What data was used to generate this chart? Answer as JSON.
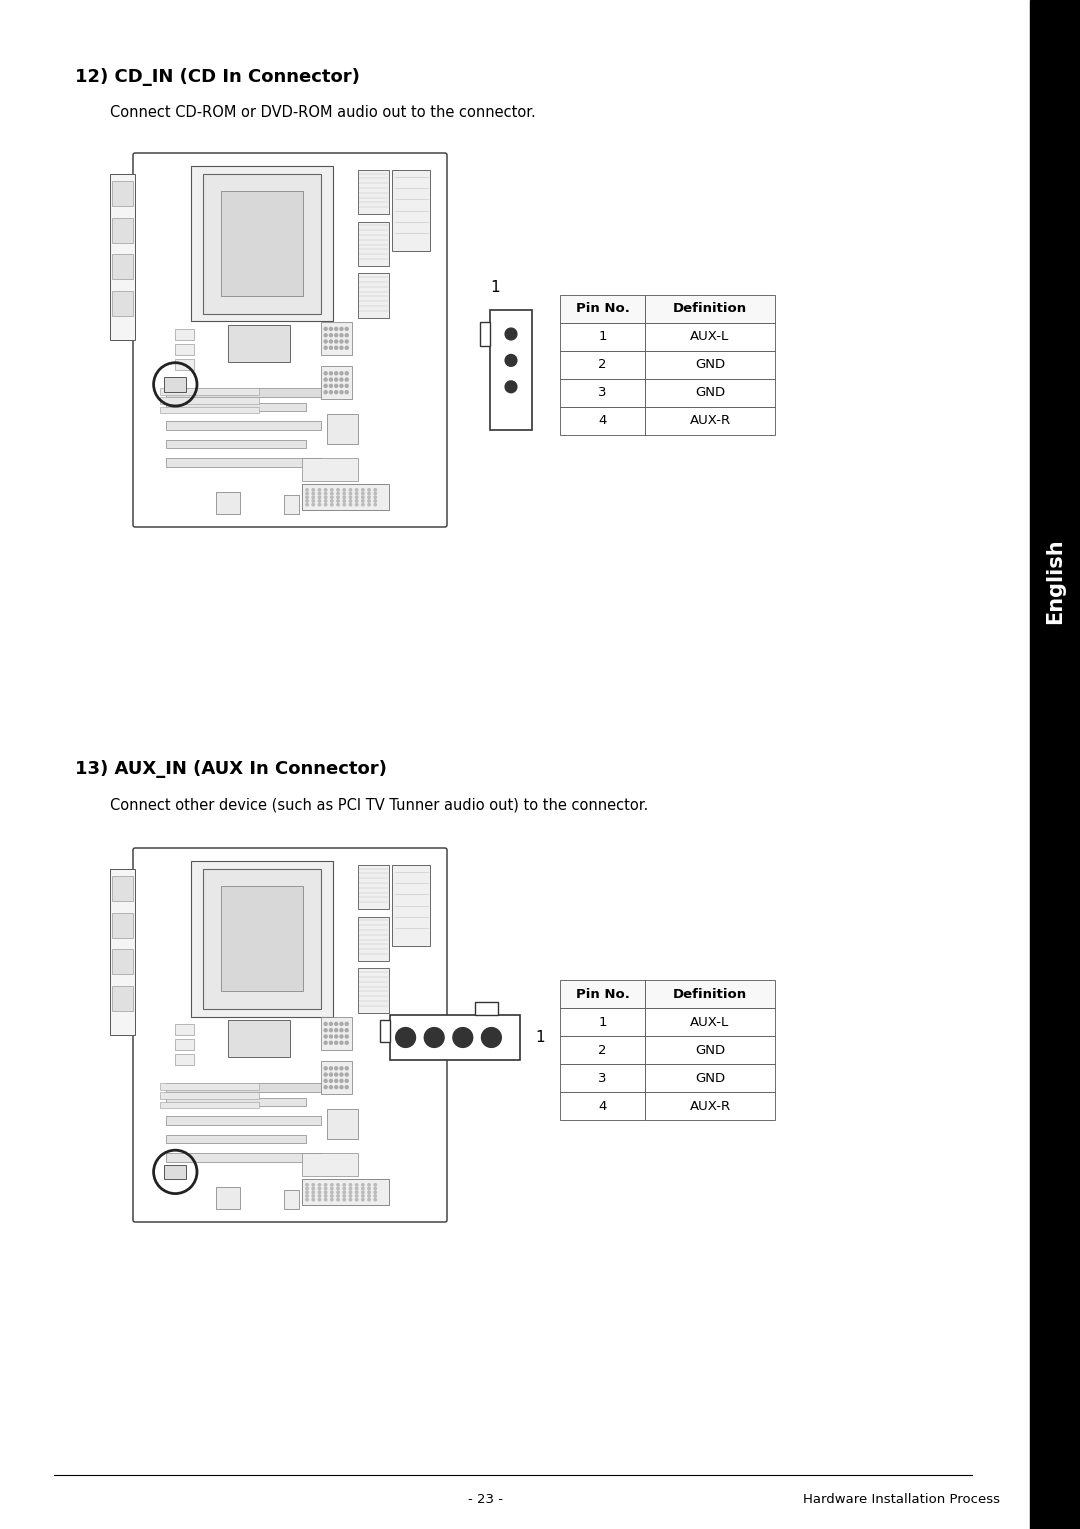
{
  "bg_color": "#ffffff",
  "sidebar_color": "#000000",
  "sidebar_text": "English",
  "section1_title": "12) CD_IN (CD In Connector)",
  "section1_desc": "Connect CD-ROM or DVD-ROM audio out to the connector.",
  "section2_title": "13) AUX_IN (AUX In Connector)",
  "section2_desc": "Connect other device (such as PCI TV Tunner audio out) to the connector.",
  "table_pin_no": [
    "Pin No.",
    "1",
    "2",
    "3",
    "4"
  ],
  "table_def": [
    "Definition",
    "AUX-L",
    "GND",
    "GND",
    "AUX-R"
  ],
  "footer_left": "- 23 -",
  "footer_right": "Hardware Installation Process",
  "title_fontsize": 13,
  "desc_fontsize": 10.5,
  "table_fontsize": 9.5,
  "footer_fontsize": 9.5,
  "sidebar_fontsize": 15
}
